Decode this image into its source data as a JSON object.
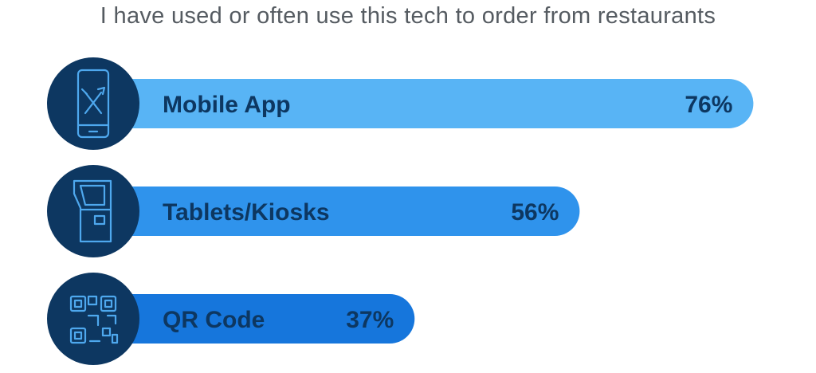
{
  "title": "I have used or often use this tech to order from restaurants",
  "colors": {
    "circle": "#0d3761",
    "icon_stroke": "#4ea8ee",
    "label_text": "#0d3761",
    "bars": [
      "#58b4f5",
      "#2f93ec",
      "#1676dc"
    ]
  },
  "icons": [
    "mobile-phone-utensils-icon",
    "kiosk-icon",
    "qr-code-icon"
  ],
  "chart_data": {
    "type": "bar",
    "orientation": "horizontal",
    "title": "I have used or often use this tech to order from restaurants",
    "categories": [
      "Mobile App",
      "Tablets/Kiosks",
      "QR Code"
    ],
    "values": [
      76,
      56,
      37
    ],
    "value_labels": [
      "76%",
      "56%",
      "37%"
    ],
    "unit": "%",
    "xlim": [
      0,
      100
    ],
    "grid": false,
    "legend": "none"
  }
}
